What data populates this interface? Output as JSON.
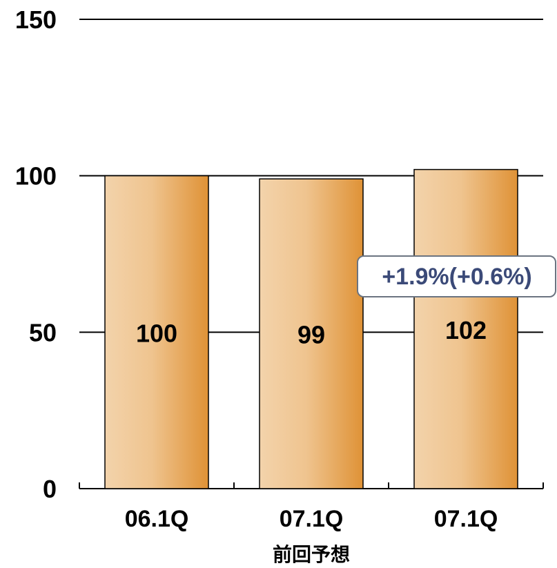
{
  "chart_data": {
    "type": "bar",
    "categories": [
      "06.1Q",
      "07.1Q",
      "07.1Q"
    ],
    "values": [
      100,
      99,
      102
    ],
    "data_labels": [
      "100",
      "99",
      "102"
    ],
    "category_sublabels": [
      "",
      "前回予想",
      ""
    ],
    "ylim": [
      0,
      150
    ],
    "yticks": [
      0,
      50,
      100,
      150
    ],
    "ytick_labels": [
      "0",
      "50",
      "100",
      "150"
    ],
    "grid": true,
    "title": "",
    "xlabel": "",
    "ylabel": "",
    "annotation": "+1.9%(+0.6%)",
    "colors": {
      "bar_light": "#f3d2a9",
      "bar_dark": "#e0953a",
      "bar_stroke": "#000000",
      "grid": "#000000",
      "annotation_text": "#3b4a78"
    }
  }
}
